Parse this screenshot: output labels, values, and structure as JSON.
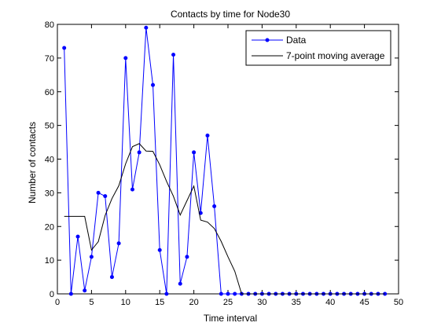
{
  "chart_data": {
    "type": "line",
    "title": "Contacts by time for Node30",
    "xlabel": "Time interval",
    "ylabel": "Number of contacts",
    "xlim": [
      0,
      50
    ],
    "ylim": [
      0,
      80
    ],
    "x_ticks": [
      0,
      5,
      10,
      15,
      20,
      25,
      30,
      35,
      40,
      45,
      50
    ],
    "y_ticks": [
      0,
      10,
      20,
      30,
      40,
      50,
      60,
      70,
      80
    ],
    "grid": false,
    "legend_position": "top-right",
    "colors": {
      "data": "#0000ff",
      "moving_average": "#000000"
    },
    "series": [
      {
        "name": "Data",
        "style": "line-with-dot-markers",
        "x": [
          1,
          2,
          3,
          4,
          5,
          6,
          7,
          8,
          9,
          10,
          11,
          12,
          13,
          14,
          15,
          16,
          17,
          18,
          19,
          20,
          21,
          22,
          23,
          24,
          25,
          26,
          27,
          28,
          29,
          30,
          31,
          32,
          33,
          34,
          35,
          36,
          37,
          38,
          39,
          40,
          41,
          42,
          43,
          44,
          45,
          46,
          47,
          48
        ],
        "y": [
          73,
          0,
          17,
          1,
          11,
          30,
          29,
          5,
          15,
          70,
          31,
          42,
          79,
          62,
          13,
          0,
          71,
          3,
          11,
          42,
          24,
          47,
          26,
          0,
          0,
          0,
          0,
          0,
          0,
          0,
          0,
          0,
          0,
          0,
          0,
          0,
          0,
          0,
          0,
          0,
          0,
          0,
          0,
          0,
          0,
          0,
          0,
          0
        ]
      },
      {
        "name": "7-point moving average",
        "style": "line",
        "x": [
          1,
          2,
          3,
          4,
          5,
          6,
          7,
          8,
          9,
          10,
          11,
          12,
          13,
          14,
          15,
          16,
          17,
          18,
          19,
          20,
          21,
          22,
          23,
          24,
          25,
          26,
          27,
          28,
          29,
          30,
          31,
          32,
          33,
          34,
          35,
          36,
          37,
          38,
          39,
          40,
          41,
          42,
          43,
          44,
          45,
          46,
          47,
          48
        ],
        "y": [
          23,
          23,
          23,
          23,
          13,
          15.5,
          23.3,
          28.3,
          32.1,
          38.6,
          43.7,
          44.6,
          42.4,
          42.3,
          38.3,
          33.4,
          29,
          23.4,
          27.7,
          32,
          21.9,
          21.3,
          19.4,
          15.6,
          11,
          6.7,
          0,
          0,
          0,
          0,
          0,
          0,
          0,
          0,
          0,
          0,
          0,
          0,
          0,
          0,
          0,
          0,
          0,
          0,
          0,
          0,
          0,
          0
        ]
      }
    ]
  }
}
